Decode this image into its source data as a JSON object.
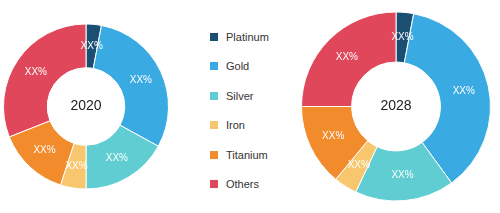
{
  "chart_data": [
    {
      "type": "doughnut",
      "title": "2020",
      "legend": "right",
      "data_labels": true,
      "categories": [
        "Platinum",
        "Gold",
        "Silver",
        "Iron",
        "Titanium",
        "Others"
      ],
      "values": [
        3,
        30,
        17,
        5,
        14,
        31
      ],
      "value_labels": [
        "XX%",
        "XX%",
        "XX%",
        "XX%",
        "XX%",
        "XX%"
      ],
      "colors": [
        "#1b4f72",
        "#3aabe2",
        "#5fcdd1",
        "#f8c66c",
        "#f28b2c",
        "#e1475b"
      ]
    },
    {
      "type": "doughnut",
      "title": "2028",
      "data_labels": true,
      "categories": [
        "Platinum",
        "Gold",
        "Silver",
        "Iron",
        "Titanium",
        "Others"
      ],
      "values": [
        3,
        37,
        17,
        4,
        14,
        25
      ],
      "value_labels": [
        "XX%",
        "XX%",
        "XX%",
        "XX%",
        "XX%",
        "XX%"
      ],
      "colors": [
        "#1b4f72",
        "#3aabe2",
        "#5fcdd1",
        "#f8c66c",
        "#f28b2c",
        "#e1475b"
      ]
    }
  ]
}
